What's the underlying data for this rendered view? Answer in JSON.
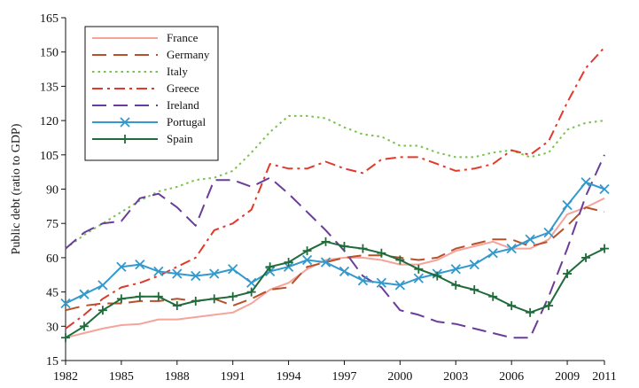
{
  "chart_data": {
    "type": "line",
    "title": "",
    "xlabel": "",
    "ylabel": "Public debt (ratio to GDP)",
    "xlim": [
      1982,
      2011
    ],
    "ylim": [
      15,
      165
    ],
    "x_ticks": [
      1982,
      1985,
      1988,
      1991,
      1994,
      1997,
      2000,
      2003,
      2006,
      2009,
      2011
    ],
    "y_ticks": [
      15,
      30,
      45,
      60,
      75,
      90,
      105,
      120,
      135,
      150,
      165
    ],
    "grid": false,
    "legend_position": "top-left",
    "x": [
      1982,
      1983,
      1984,
      1985,
      1986,
      1987,
      1988,
      1989,
      1990,
      1991,
      1992,
      1993,
      1994,
      1995,
      1996,
      1997,
      1998,
      1999,
      2000,
      2001,
      2002,
      2003,
      2004,
      2005,
      2006,
      2007,
      2008,
      2009,
      2010,
      2011
    ],
    "series": [
      {
        "name": "France",
        "color": "#f4a49a",
        "dash": "solid",
        "marker": "none",
        "values": [
          25,
          27,
          29,
          30.5,
          31,
          33,
          33,
          34,
          35,
          36,
          40,
          46,
          49,
          55,
          59,
          60,
          60,
          59,
          57,
          57,
          59,
          63,
          65,
          67,
          64,
          64,
          68,
          79,
          82,
          86
        ]
      },
      {
        "name": "Germany",
        "color": "#b8502a",
        "dash": "long-dash",
        "marker": "none",
        "values": [
          37,
          39,
          40,
          40,
          41,
          41,
          42,
          41,
          42,
          39,
          42,
          46,
          47,
          56,
          58,
          60,
          61,
          61,
          60,
          59,
          60,
          64,
          66,
          68,
          68,
          65,
          67,
          74,
          82,
          80
        ]
      },
      {
        "name": "Italy",
        "color": "#7cc04f",
        "dash": "dot",
        "marker": "none",
        "values": [
          64,
          70,
          75,
          80,
          85,
          89,
          91,
          94,
          95,
          98,
          106,
          115,
          122,
          122,
          121,
          117,
          114,
          113,
          109,
          109,
          106,
          104,
          104,
          106,
          107,
          104,
          106,
          116,
          119,
          120
        ]
      },
      {
        "name": "Greece",
        "color": "#e03a2c",
        "dash": "dash-dot",
        "marker": "none",
        "values": [
          29,
          35,
          42,
          47,
          49,
          52,
          56,
          60,
          72,
          75,
          81,
          101,
          99,
          99,
          102,
          99,
          97,
          103,
          104,
          104,
          101,
          98,
          99,
          101,
          107,
          105,
          111,
          128,
          143,
          152
        ]
      },
      {
        "name": "Ireland",
        "color": "#6a3d9a",
        "dash": "long-dash",
        "marker": "none",
        "values": [
          64,
          71,
          75,
          76,
          86,
          88,
          82,
          74,
          94,
          94,
          91,
          95,
          88,
          80,
          72,
          63,
          52,
          47,
          37,
          35,
          32,
          31,
          29,
          27,
          25,
          25,
          43,
          64,
          87,
          105
        ]
      },
      {
        "name": "Portugal",
        "color": "#3399cc",
        "dash": "solid",
        "marker": "x",
        "values": [
          40,
          44,
          48,
          56,
          57,
          54,
          53,
          52,
          53,
          55,
          49,
          54,
          56,
          59,
          58,
          54,
          50,
          49,
          48,
          51,
          53,
          55,
          57,
          62,
          64,
          68,
          71,
          83,
          93,
          90
        ]
      },
      {
        "name": "Spain",
        "color": "#1f6b3a",
        "dash": "solid",
        "marker": "plus",
        "values": [
          25,
          30,
          37,
          42,
          43,
          43,
          39,
          41,
          42,
          43,
          45,
          56,
          58,
          63,
          67,
          65,
          64,
          62,
          59,
          55,
          52,
          48,
          46,
          43,
          39,
          36,
          39,
          53,
          60,
          64
        ]
      }
    ]
  }
}
